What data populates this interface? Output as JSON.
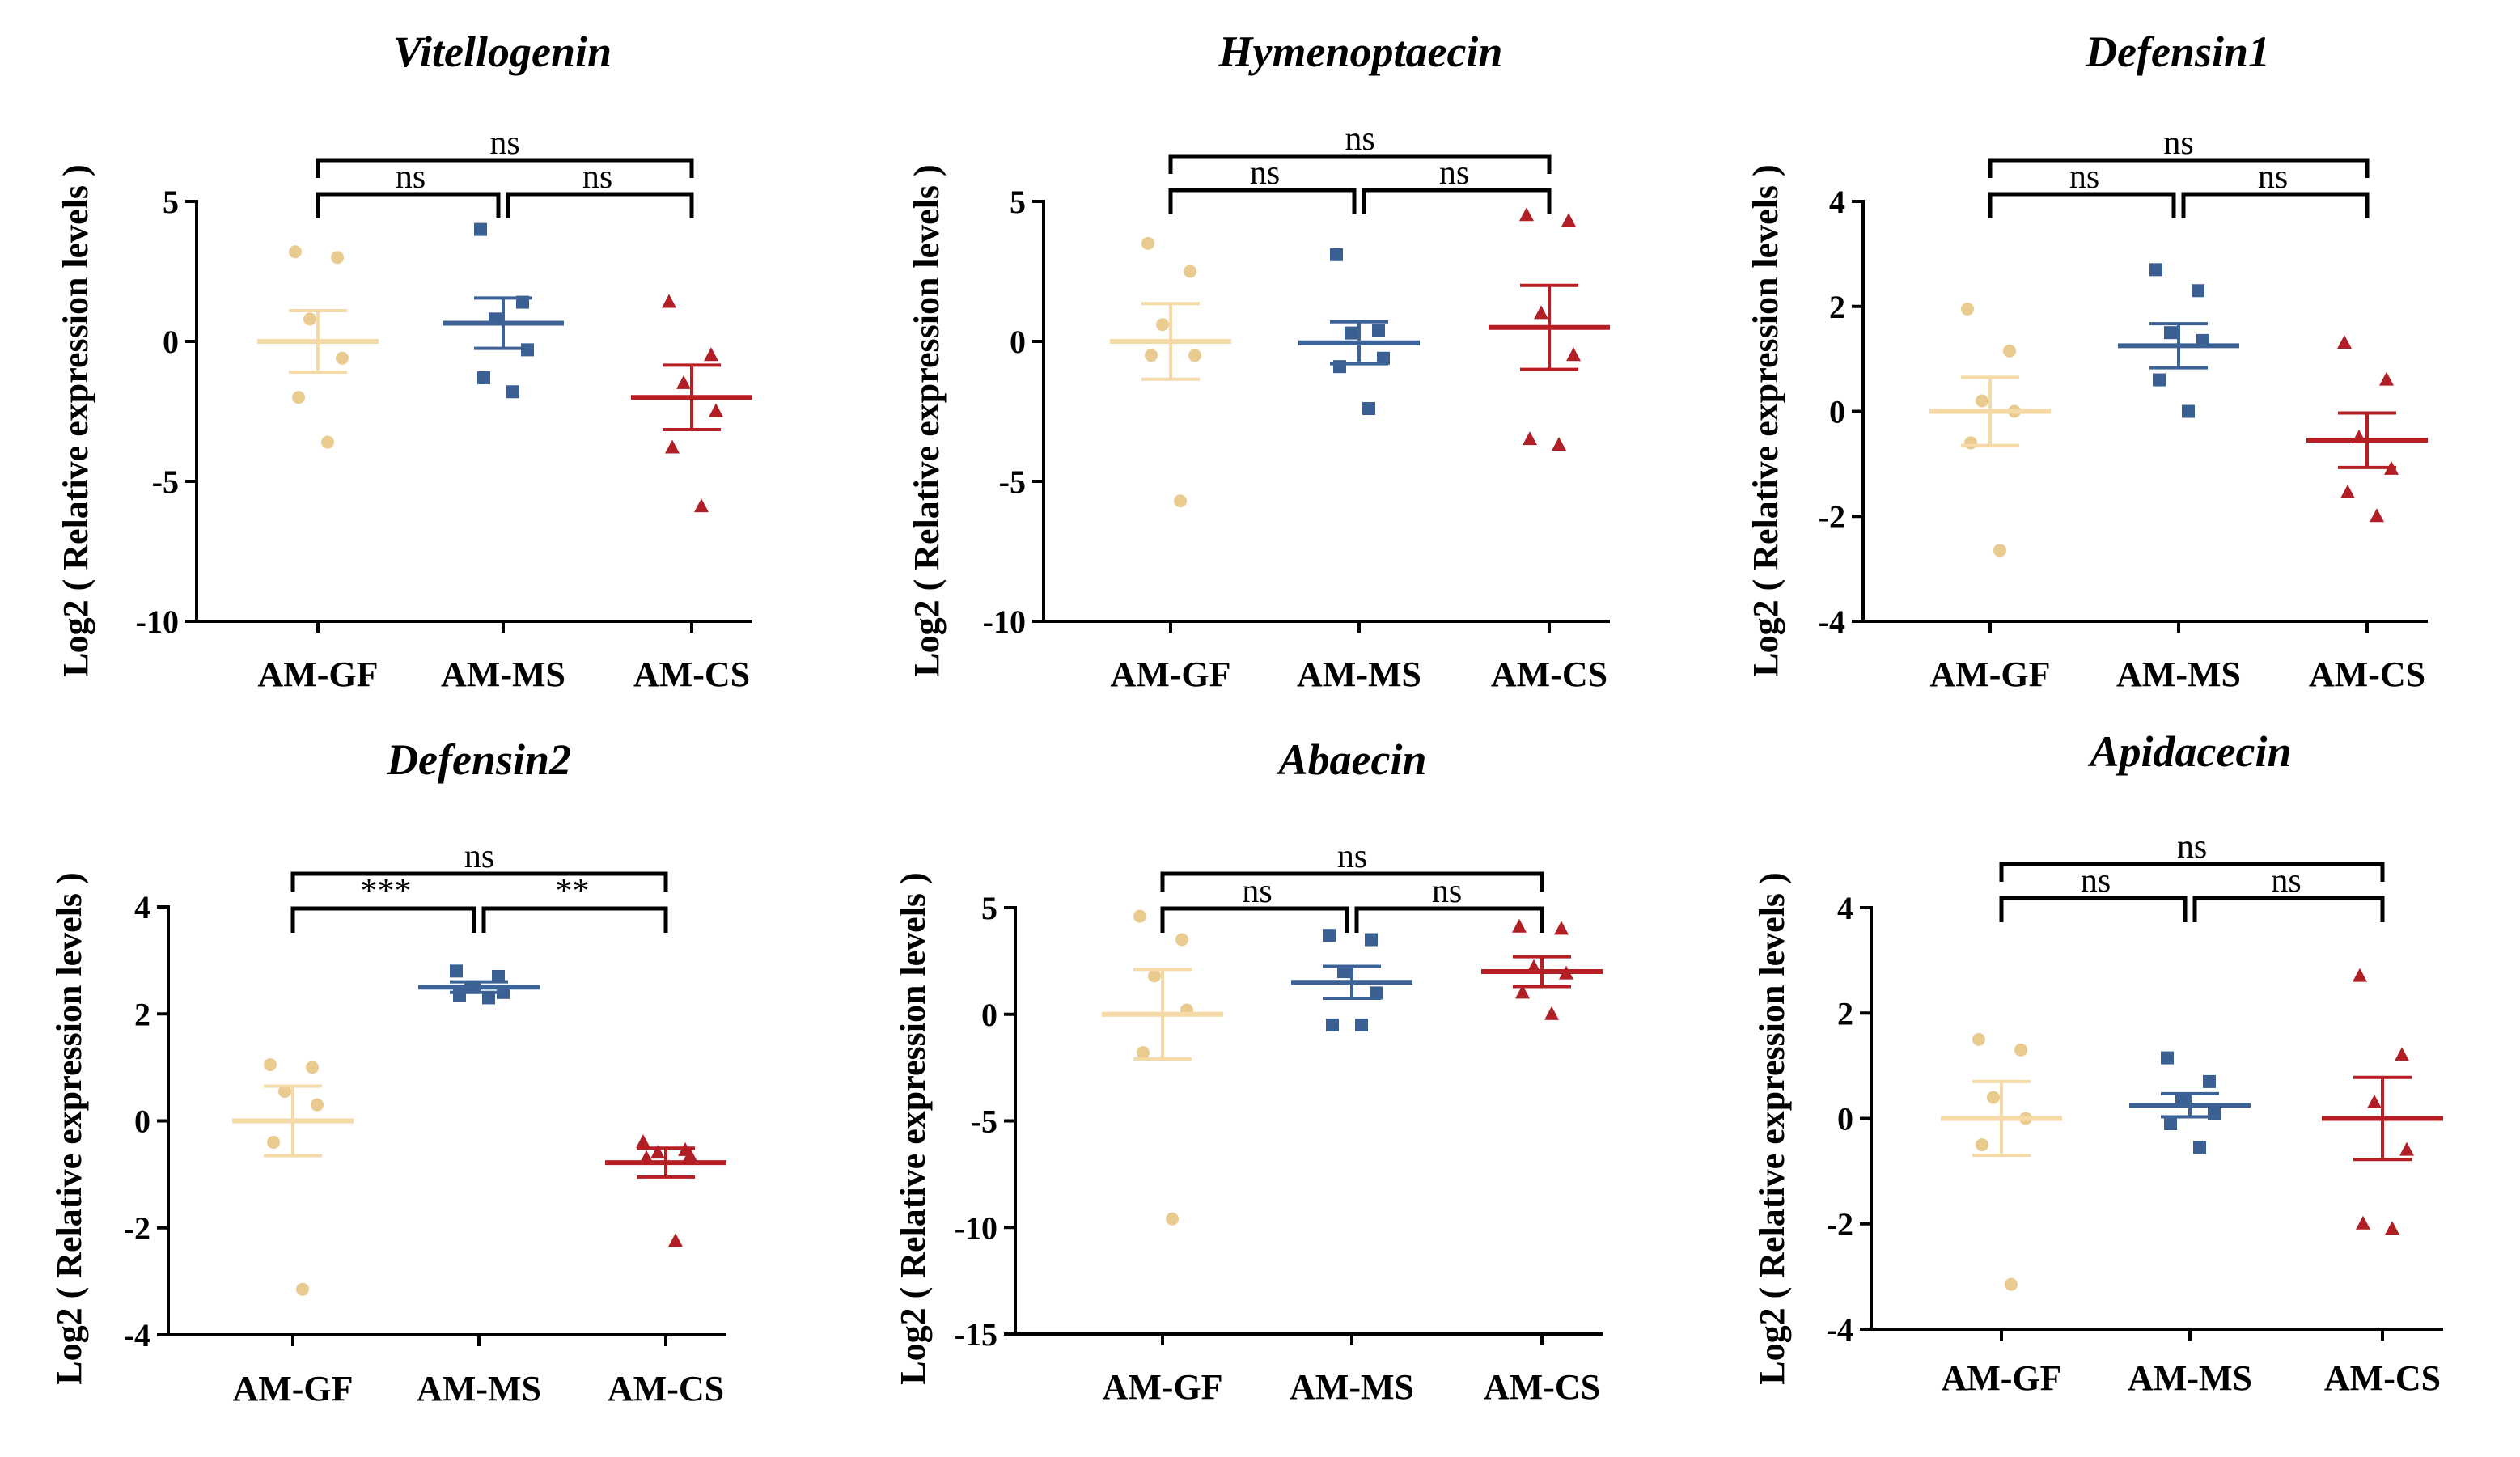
{
  "figure": {
    "ylabel": "Log2 ( Relative expression levels )"
  },
  "colors": {
    "AM-GF": "#f5d9a6",
    "AM-MS": "#3d6396",
    "AM-CS": "#b51f24",
    "mark_GF": "#e9cb8f",
    "mark_MS": "#3a5f92",
    "mark_CS": "#b01f25"
  },
  "chart_data": [
    {
      "type": "scatter",
      "title": "Vitellogenin",
      "ylabel": "Log2 ( Relative expression levels )",
      "categories": [
        "AM-GF",
        "AM-MS",
        "AM-CS"
      ],
      "yticks": [
        5,
        0,
        -5,
        -10
      ],
      "ylim": [
        -10,
        5
      ],
      "groups": [
        {
          "name": "AM-GF",
          "marker": "circle",
          "points": [
            3.2,
            3.0,
            0.8,
            -0.6,
            -2.0,
            -3.6
          ],
          "mean": 0.0,
          "sem": 1.1
        },
        {
          "name": "AM-MS",
          "marker": "square",
          "points": [
            4.0,
            1.4,
            0.8,
            -0.3,
            -1.3,
            -1.8
          ],
          "mean": 0.65,
          "sem": 0.9
        },
        {
          "name": "AM-CS",
          "marker": "triangle",
          "points": [
            1.4,
            -0.5,
            -1.5,
            -2.5,
            -3.8,
            -5.9
          ],
          "mean": -2.0,
          "sem": 1.15
        }
      ],
      "comparisons": [
        {
          "pair": [
            "AM-GF",
            "AM-MS"
          ],
          "label": "ns"
        },
        {
          "pair": [
            "AM-MS",
            "AM-CS"
          ],
          "label": "ns"
        },
        {
          "pair": [
            "AM-GF",
            "AM-CS"
          ],
          "label": "ns"
        }
      ]
    },
    {
      "type": "scatter",
      "title": "Hymenoptaecin",
      "ylabel": "Log2 ( Relative expression levels )",
      "categories": [
        "AM-GF",
        "AM-MS",
        "AM-CS"
      ],
      "yticks": [
        5,
        0,
        -5,
        -10
      ],
      "ylim": [
        -10,
        5
      ],
      "groups": [
        {
          "name": "AM-GF",
          "marker": "circle",
          "points": [
            3.5,
            2.5,
            0.6,
            -0.5,
            -0.5,
            -5.7
          ],
          "mean": 0.0,
          "sem": 1.35
        },
        {
          "name": "AM-MS",
          "marker": "square",
          "points": [
            3.1,
            0.4,
            0.3,
            -0.6,
            -0.9,
            -2.4
          ],
          "mean": -0.05,
          "sem": 0.75
        },
        {
          "name": "AM-CS",
          "marker": "triangle",
          "points": [
            4.5,
            4.3,
            1.0,
            -0.5,
            -3.5,
            -3.7
          ],
          "mean": 0.5,
          "sem": 1.5
        }
      ],
      "comparisons": [
        {
          "pair": [
            "AM-GF",
            "AM-MS"
          ],
          "label": "ns"
        },
        {
          "pair": [
            "AM-MS",
            "AM-CS"
          ],
          "label": "ns"
        },
        {
          "pair": [
            "AM-GF",
            "AM-CS"
          ],
          "label": "ns"
        }
      ]
    },
    {
      "type": "scatter",
      "title": "Defensin1",
      "ylabel": "Log2 ( Relative expression levels )",
      "categories": [
        "AM-GF",
        "AM-MS",
        "AM-CS"
      ],
      "yticks": [
        4,
        2,
        0,
        -2,
        -4
      ],
      "ylim": [
        -4,
        4
      ],
      "groups": [
        {
          "name": "AM-GF",
          "marker": "circle",
          "points": [
            1.95,
            1.15,
            0.2,
            0.0,
            -0.6,
            -2.65
          ],
          "mean": 0.0,
          "sem": 0.65
        },
        {
          "name": "AM-MS",
          "marker": "square",
          "points": [
            2.7,
            2.3,
            1.5,
            1.35,
            0.6,
            0.0
          ],
          "mean": 1.25,
          "sem": 0.42
        },
        {
          "name": "AM-CS",
          "marker": "triangle",
          "points": [
            1.3,
            0.6,
            -0.5,
            -1.1,
            -1.55,
            -2.0
          ],
          "mean": -0.55,
          "sem": 0.52
        }
      ],
      "comparisons": [
        {
          "pair": [
            "AM-GF",
            "AM-MS"
          ],
          "label": "ns"
        },
        {
          "pair": [
            "AM-MS",
            "AM-CS"
          ],
          "label": "ns"
        },
        {
          "pair": [
            "AM-GF",
            "AM-CS"
          ],
          "label": "ns"
        }
      ]
    },
    {
      "type": "scatter",
      "title": "Defensin2",
      "ylabel": "Log2 ( Relative expression levels )",
      "categories": [
        "AM-GF",
        "AM-MS",
        "AM-CS"
      ],
      "yticks": [
        4,
        2,
        0,
        -2,
        -4
      ],
      "ylim": [
        -4,
        4
      ],
      "groups": [
        {
          "name": "AM-GF",
          "marker": "circle",
          "points": [
            1.05,
            1.0,
            0.55,
            0.3,
            -0.4,
            -3.15
          ],
          "mean": 0.0,
          "sem": 0.65
        },
        {
          "name": "AM-MS",
          "marker": "square",
          "points": [
            2.8,
            2.7,
            2.5,
            2.4,
            2.35,
            2.3
          ],
          "mean": 2.5,
          "sem": 0.1
        },
        {
          "name": "AM-CS",
          "marker": "triangle",
          "points": [
            -0.4,
            -0.55,
            -0.6,
            -0.65,
            -0.7,
            -2.25
          ],
          "mean": -0.78,
          "sem": 0.27
        }
      ],
      "comparisons": [
        {
          "pair": [
            "AM-GF",
            "AM-MS"
          ],
          "label": "***"
        },
        {
          "pair": [
            "AM-MS",
            "AM-CS"
          ],
          "label": "**"
        },
        {
          "pair": [
            "AM-GF",
            "AM-CS"
          ],
          "label": "ns"
        }
      ]
    },
    {
      "type": "scatter",
      "title": "Abaecin",
      "ylabel": "Log2 ( Relative expression levels )",
      "categories": [
        "AM-GF",
        "AM-MS",
        "AM-CS"
      ],
      "yticks": [
        5,
        0,
        -5,
        -10,
        -15
      ],
      "ylim": [
        -15,
        5
      ],
      "groups": [
        {
          "name": "AM-GF",
          "marker": "circle",
          "points": [
            4.6,
            3.5,
            1.8,
            0.2,
            -1.8,
            -9.6
          ],
          "mean": 0.0,
          "sem": 2.1
        },
        {
          "name": "AM-MS",
          "marker": "square",
          "points": [
            3.7,
            3.5,
            2.0,
            1.0,
            -0.5,
            -0.5
          ],
          "mean": 1.5,
          "sem": 0.75
        },
        {
          "name": "AM-CS",
          "marker": "triangle",
          "points": [
            4.1,
            4.0,
            2.2,
            1.9,
            1.0,
            0.0
          ],
          "mean": 2.0,
          "sem": 0.7
        }
      ],
      "comparisons": [
        {
          "pair": [
            "AM-GF",
            "AM-MS"
          ],
          "label": "ns"
        },
        {
          "pair": [
            "AM-MS",
            "AM-CS"
          ],
          "label": "ns"
        },
        {
          "pair": [
            "AM-GF",
            "AM-CS"
          ],
          "label": "ns"
        }
      ]
    },
    {
      "type": "scatter",
      "title": "Apidacecin",
      "ylabel": "Log2 ( Relative expression levels )",
      "categories": [
        "AM-GF",
        "AM-MS",
        "AM-CS"
      ],
      "yticks": [
        4,
        2,
        0,
        -2,
        -4
      ],
      "ylim": [
        -4,
        4
      ],
      "groups": [
        {
          "name": "AM-GF",
          "marker": "circle",
          "points": [
            1.5,
            1.3,
            0.4,
            0.0,
            -0.5,
            -3.15
          ],
          "mean": 0.0,
          "sem": 0.7
        },
        {
          "name": "AM-MS",
          "marker": "square",
          "points": [
            1.15,
            0.7,
            0.35,
            0.1,
            -0.1,
            -0.55
          ],
          "mean": 0.25,
          "sem": 0.22
        },
        {
          "name": "AM-CS",
          "marker": "triangle",
          "points": [
            2.7,
            1.2,
            0.3,
            -0.6,
            -2.0,
            -2.1
          ],
          "mean": 0.0,
          "sem": 0.78
        }
      ],
      "comparisons": [
        {
          "pair": [
            "AM-GF",
            "AM-MS"
          ],
          "label": "ns"
        },
        {
          "pair": [
            "AM-MS",
            "AM-CS"
          ],
          "label": "ns"
        },
        {
          "pair": [
            "AM-GF",
            "AM-CS"
          ],
          "label": "ns"
        }
      ]
    }
  ]
}
